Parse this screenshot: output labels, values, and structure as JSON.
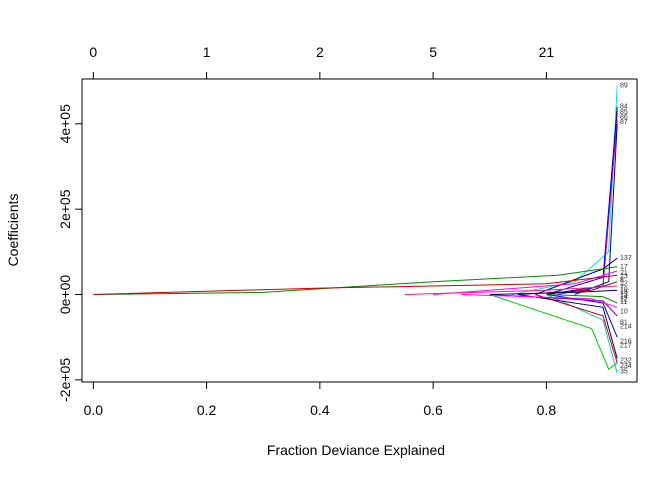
{
  "chart_data": {
    "type": "line",
    "title": "",
    "xlabel": "Fraction Deviance Explained",
    "ylabel": "Coefficients",
    "xlim": [
      -0.02,
      0.96
    ],
    "ylim": [
      -205000,
      505000
    ],
    "x_ticks": [
      0.0,
      0.2,
      0.4,
      0.6,
      0.8
    ],
    "x_tick_labels": [
      "0.0",
      "0.2",
      "0.4",
      "0.6",
      "0.8"
    ],
    "y_ticks": [
      -200000,
      0,
      200000,
      400000
    ],
    "y_tick_labels": [
      "-2e+05",
      "0e+00",
      "2e+05",
      "4e+05"
    ],
    "top_axis": {
      "ticks_x": [
        0.0,
        0.2,
        0.4,
        0.6,
        0.8
      ],
      "labels": [
        "0",
        "1",
        "2",
        "5",
        "21"
      ]
    },
    "grid": false,
    "series": [
      {
        "color": "#00e5ee",
        "points": [
          [
            0.74,
            0
          ],
          [
            0.85,
            30000
          ],
          [
            0.91,
            100000
          ],
          [
            0.925,
            490000
          ]
        ]
      },
      {
        "color": "#0000ff",
        "points": [
          [
            0.8,
            0
          ],
          [
            0.9,
            40000
          ],
          [
            0.925,
            440000
          ]
        ]
      },
      {
        "color": "#00008b",
        "points": [
          [
            0.8,
            0
          ],
          [
            0.9,
            20000
          ],
          [
            0.925,
            430000
          ]
        ]
      },
      {
        "color": "#cc00cc",
        "points": [
          [
            0.82,
            0
          ],
          [
            0.9,
            20000
          ],
          [
            0.925,
            410000
          ]
        ]
      },
      {
        "color": "#00008b",
        "points": [
          [
            0.85,
            0
          ],
          [
            0.91,
            30000
          ],
          [
            0.925,
            400000
          ]
        ]
      },
      {
        "color": "#000080",
        "points": [
          [
            0.78,
            0
          ],
          [
            0.9,
            60000
          ],
          [
            0.925,
            85000
          ]
        ]
      },
      {
        "color": "#008b00",
        "points": [
          [
            0.0,
            0
          ],
          [
            0.3,
            5000
          ],
          [
            0.6,
            30000
          ],
          [
            0.82,
            45000
          ],
          [
            0.925,
            65000
          ]
        ]
      },
      {
        "color": "#ff00ff",
        "points": [
          [
            0.6,
            0
          ],
          [
            0.85,
            25000
          ],
          [
            0.925,
            55000
          ]
        ]
      },
      {
        "color": "#cd0000",
        "points": [
          [
            0.0,
            0
          ],
          [
            0.4,
            15000
          ],
          [
            0.8,
            25000
          ],
          [
            0.925,
            45000
          ]
        ]
      },
      {
        "color": "#8b0000",
        "points": [
          [
            0.75,
            0
          ],
          [
            0.88,
            10000
          ],
          [
            0.925,
            30000
          ]
        ]
      },
      {
        "color": "#ff1493",
        "points": [
          [
            0.55,
            0
          ],
          [
            0.8,
            10000
          ],
          [
            0.925,
            20000
          ]
        ]
      },
      {
        "color": "#00cdcd",
        "points": [
          [
            0.8,
            0
          ],
          [
            0.9,
            -60000
          ],
          [
            0.925,
            -185000
          ]
        ]
      },
      {
        "color": "#00cd00",
        "points": [
          [
            0.7,
            0
          ],
          [
            0.88,
            -80000
          ],
          [
            0.91,
            -175000
          ],
          [
            0.925,
            -160000
          ]
        ]
      },
      {
        "color": "#cd0000",
        "points": [
          [
            0.78,
            0
          ],
          [
            0.9,
            -50000
          ],
          [
            0.925,
            -160000
          ]
        ]
      },
      {
        "color": "#000080",
        "points": [
          [
            0.75,
            0
          ],
          [
            0.9,
            -30000
          ],
          [
            0.925,
            -150000
          ]
        ]
      },
      {
        "color": "#0000ff",
        "points": [
          [
            0.8,
            0
          ],
          [
            0.9,
            -20000
          ],
          [
            0.925,
            -100000
          ]
        ]
      },
      {
        "color": "#8b008b",
        "points": [
          [
            0.7,
            0
          ],
          [
            0.9,
            -15000
          ],
          [
            0.925,
            -50000
          ]
        ]
      },
      {
        "color": "#ff00ff",
        "points": [
          [
            0.65,
            0
          ],
          [
            0.88,
            -10000
          ],
          [
            0.925,
            -30000
          ]
        ]
      },
      {
        "color": "#008b00",
        "points": [
          [
            0.8,
            0
          ],
          [
            0.9,
            -5000
          ],
          [
            0.925,
            -20000
          ]
        ]
      },
      {
        "color": "#00008b",
        "points": [
          [
            0.7,
            0
          ],
          [
            0.85,
            5000
          ],
          [
            0.925,
            10000
          ]
        ]
      }
    ],
    "right_labels": [
      {
        "text": "89",
        "y": 490000
      },
      {
        "text": "84",
        "y": 440000
      },
      {
        "text": "85",
        "y": 428000
      },
      {
        "text": "86",
        "y": 416000
      },
      {
        "text": "87",
        "y": 404000
      },
      {
        "text": "137",
        "y": 85000
      },
      {
        "text": "17",
        "y": 65000
      },
      {
        "text": "21",
        "y": 50000
      },
      {
        "text": "23",
        "y": 42000
      },
      {
        "text": "8",
        "y": 34000
      },
      {
        "text": "22",
        "y": 26000
      },
      {
        "text": "7",
        "y": 18000
      },
      {
        "text": "19",
        "y": 12000
      },
      {
        "text": "15",
        "y": 6000
      },
      {
        "text": "13",
        "y": 0
      },
      {
        "text": "14",
        "y": -6000
      },
      {
        "text": "12",
        "y": -12000
      },
      {
        "text": "11",
        "y": -18000
      },
      {
        "text": "10",
        "y": -40000
      },
      {
        "text": "81",
        "y": -65000
      },
      {
        "text": "214",
        "y": -75000
      },
      {
        "text": "216",
        "y": -110000
      },
      {
        "text": "217",
        "y": -120000
      },
      {
        "text": "232",
        "y": -155000
      },
      {
        "text": "234",
        "y": -168000
      },
      {
        "text": "35",
        "y": -180000
      }
    ]
  }
}
